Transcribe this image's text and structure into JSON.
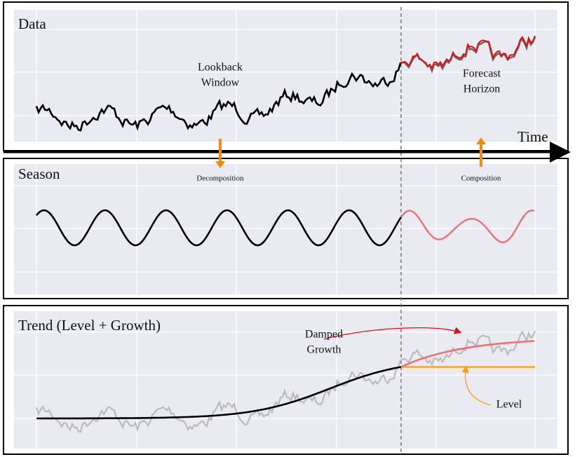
{
  "data_panel": {
    "title": "Data",
    "lookback": [
      "Lookback",
      "Window"
    ],
    "forecast": [
      "Forecast",
      "Horizon"
    ],
    "axis_label": "Time"
  },
  "arrows": {
    "down": "Decomposition",
    "up": "Composition"
  },
  "season_panel": {
    "title": "Season"
  },
  "trend_panel": {
    "title": "Trend (Level + Growth)",
    "growth": [
      "Damped",
      "Growth"
    ],
    "level": "Level"
  }
}
